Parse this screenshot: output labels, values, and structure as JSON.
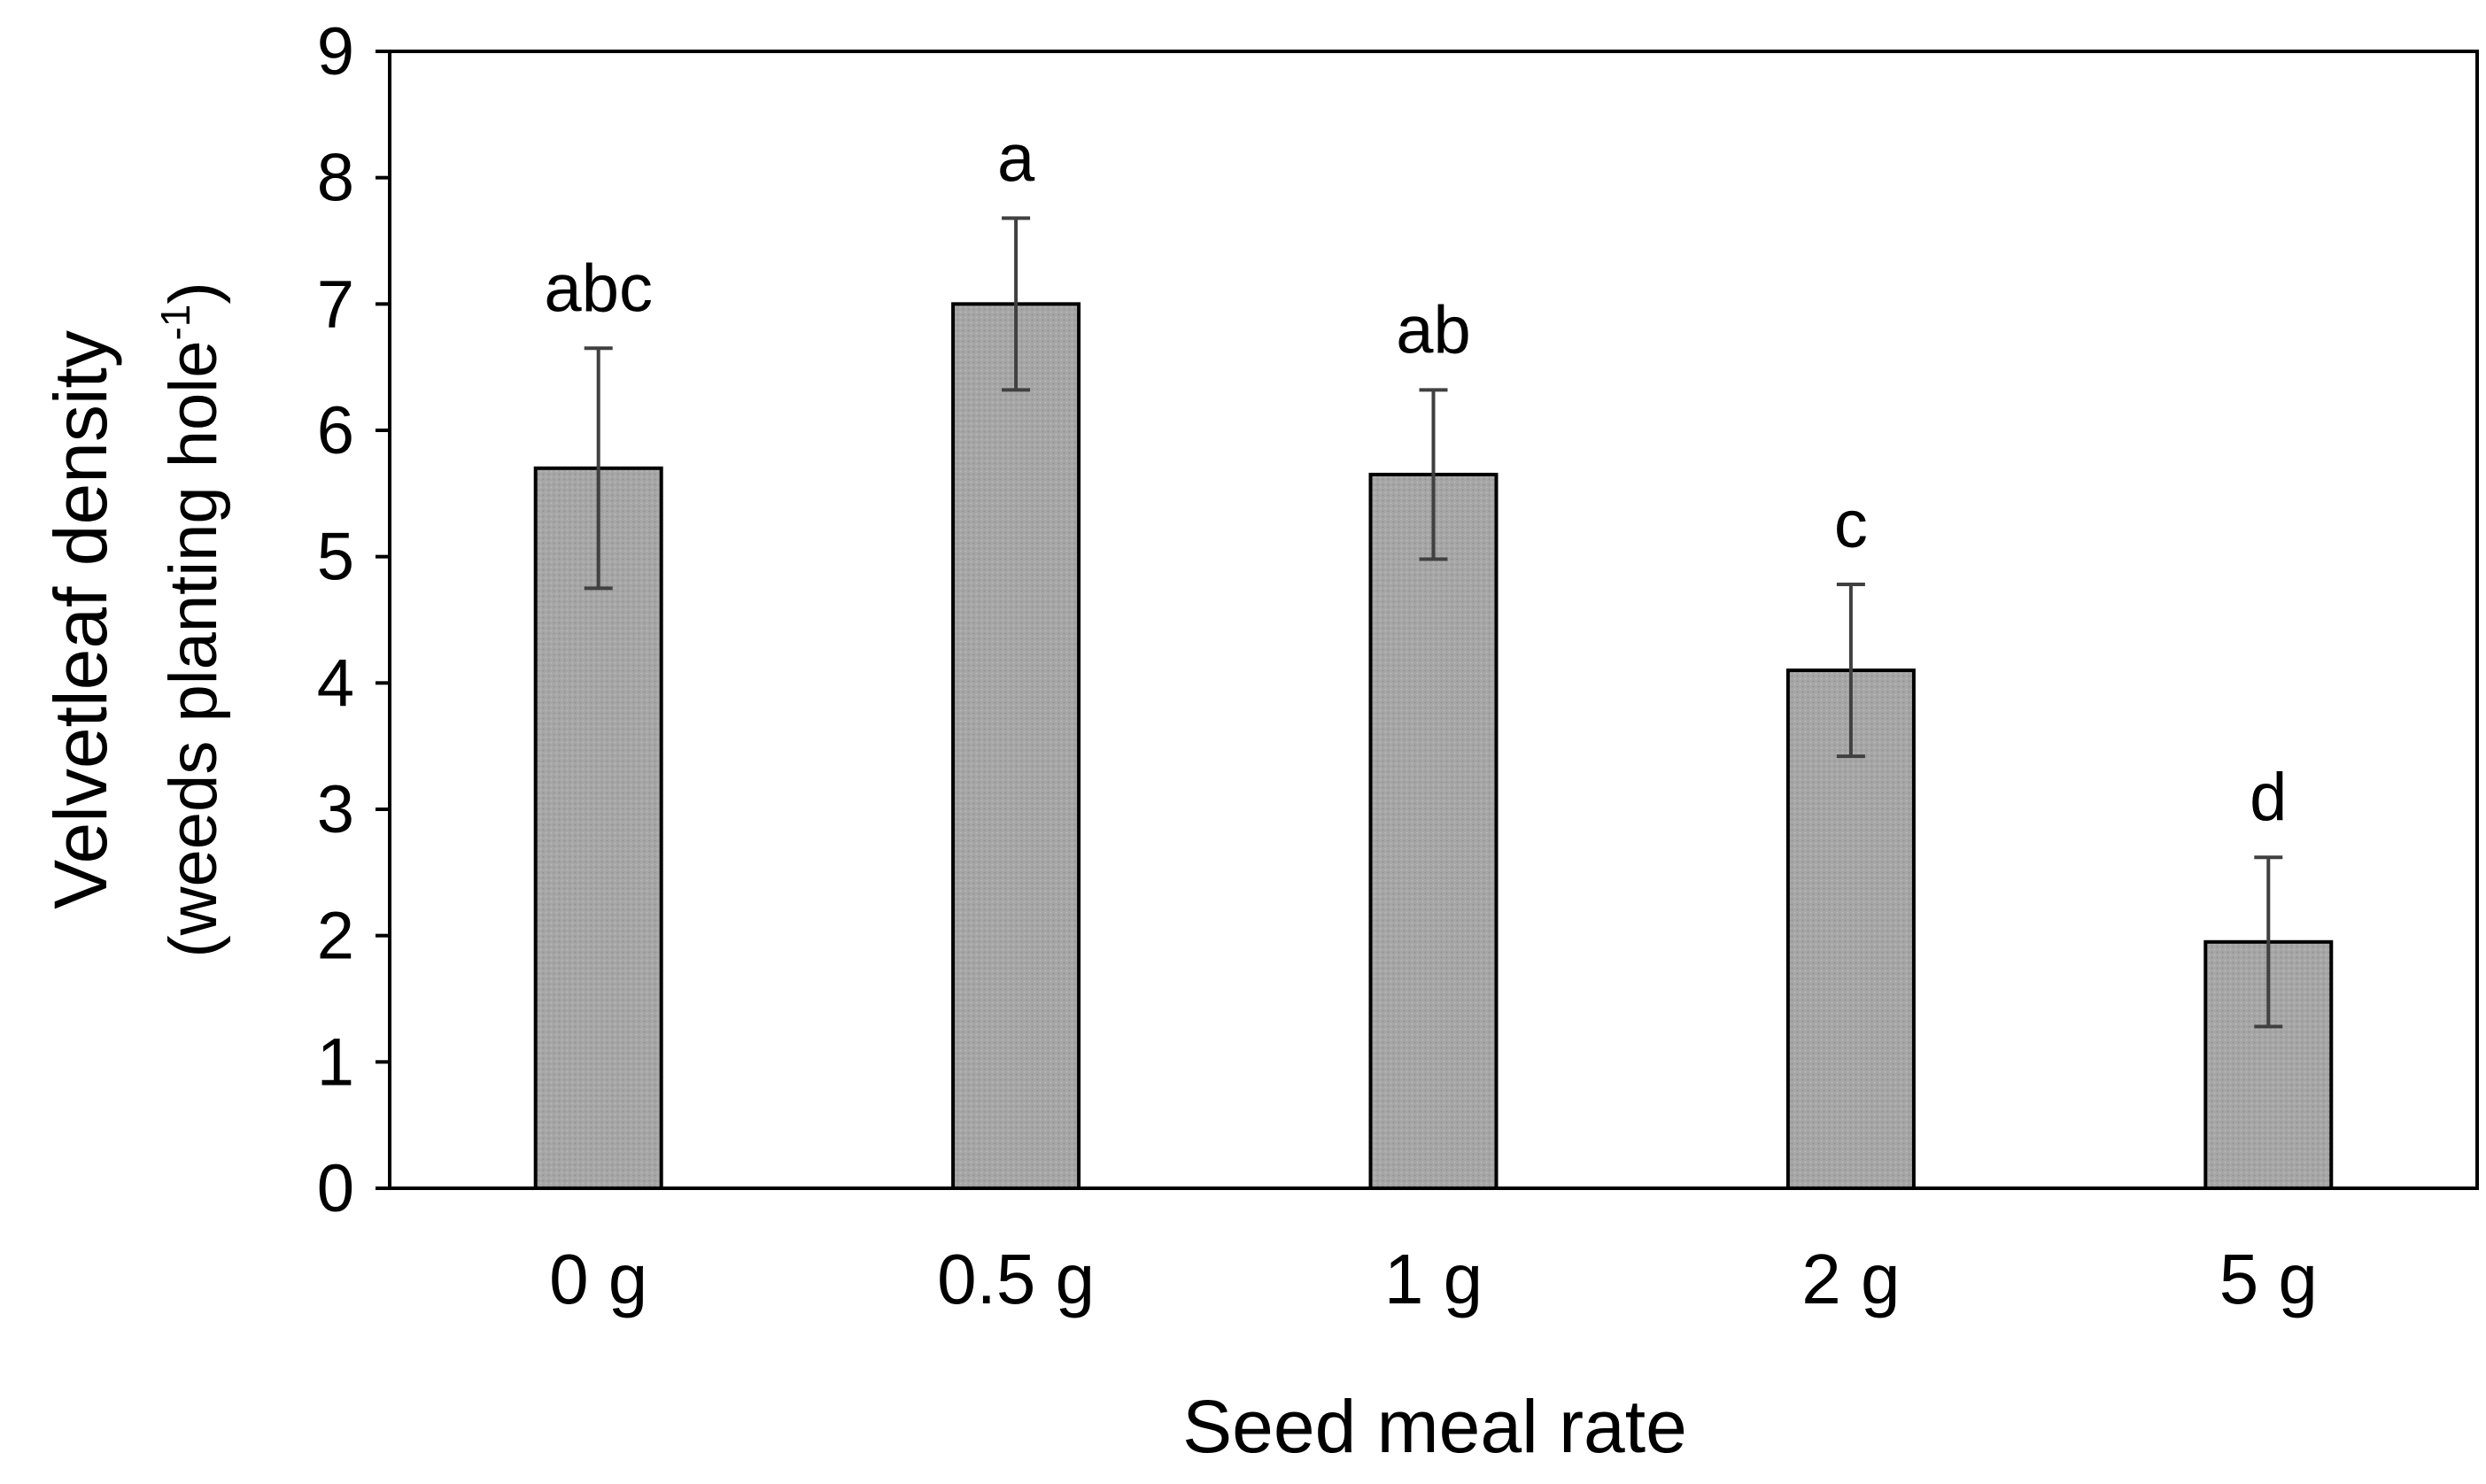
{
  "chart_data": {
    "type": "bar",
    "categories": [
      "0 g",
      "0.5 g",
      "1 g",
      "2 g",
      "5 g"
    ],
    "values": [
      5.7,
      7.0,
      5.65,
      4.1,
      1.95
    ],
    "error": [
      0.95,
      0.68,
      0.67,
      0.68,
      0.67
    ],
    "significance_letters": [
      "abc",
      "a",
      "ab",
      "c",
      "d"
    ],
    "xlabel": "Seed meal rate",
    "ylabel_line1": "Velvetleaf density",
    "ylabel_line2_main": "(weeds planting hole",
    "ylabel_line2_sup": "-1",
    "ylabel_line2_end": ")",
    "ylim": [
      0,
      9
    ],
    "yticks": [
      0,
      1,
      2,
      3,
      4,
      5,
      6,
      7,
      8,
      9
    ],
    "grid": false,
    "bar_color": "#a6a6a6",
    "bar_edge_color": "#000000",
    "error_color": "#404040"
  }
}
